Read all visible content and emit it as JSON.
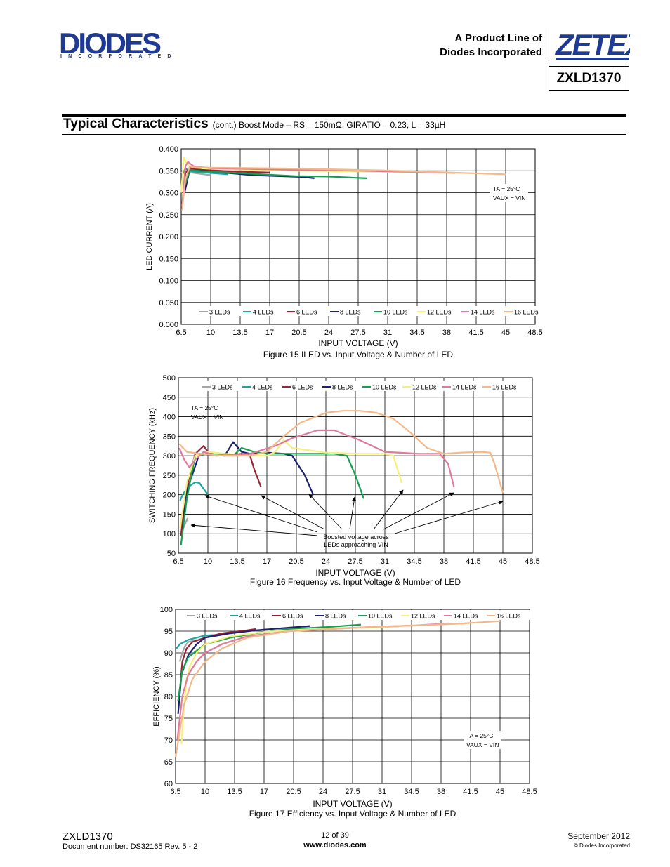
{
  "header": {
    "logo_text": "DIODES",
    "logo_subtext": "INCORPORATED",
    "product_line_1": "A Product Line of",
    "product_line_2": "Diodes Incorporated",
    "zetex_logo": "ZETEX",
    "part_number": "ZXLD1370"
  },
  "section": {
    "title": "Typical Characteristics",
    "subtitle": "(cont.) Boost Mode – RS = 150mΩ, GIRATIO = 0.23, L = 33µH"
  },
  "chart_data": [
    {
      "type": "line",
      "caption": "Figure 15  ILED vs. Input Voltage & Number of LED",
      "xlabel": "INPUT VOLTAGE (V)",
      "ylabel": "LED CURRENT (A)",
      "xlim": [
        6.5,
        48.5
      ],
      "ylim": [
        0,
        0.4
      ],
      "xticks": [
        "6.5",
        "10",
        "13.5",
        "17",
        "20.5",
        "24",
        "27.5",
        "31",
        "34.5",
        "38",
        "41.5",
        "45",
        "48.5"
      ],
      "yticks": [
        "0.000",
        "0.050",
        "0.100",
        "0.150",
        "0.200",
        "0.250",
        "0.300",
        "0.350",
        "0.400"
      ],
      "annotation_1": "TA = 25°C",
      "annotation_2": "VAUX = VIN",
      "series": [
        {
          "name": "3 LEDs",
          "color": "#a6a6a6",
          "x": [
            6.5,
            7,
            8,
            10
          ],
          "y": [
            0.345,
            0.35,
            0.345,
            0.34
          ]
        },
        {
          "name": "4 LEDs",
          "color": "#1aa5a5",
          "x": [
            6.6,
            7,
            7.5,
            8,
            10,
            12
          ],
          "y": [
            0.34,
            0.355,
            0.35,
            0.348,
            0.345,
            0.342
          ]
        },
        {
          "name": "6 LEDs",
          "color": "#9b2335",
          "x": [
            6.8,
            7,
            7.5,
            9,
            12,
            15,
            17
          ],
          "y": [
            0.31,
            0.345,
            0.356,
            0.352,
            0.349,
            0.347,
            0.346
          ]
        },
        {
          "name": "8 LEDs",
          "color": "#1f2070",
          "x": [
            6.9,
            7.5,
            9,
            12,
            15,
            18,
            21,
            22.3
          ],
          "y": [
            0.3,
            0.352,
            0.35,
            0.345,
            0.34,
            0.338,
            0.336,
            0.333
          ]
        },
        {
          "name": "10 LEDs",
          "color": "#13a050",
          "x": [
            7,
            7.5,
            9,
            12,
            15,
            20,
            24,
            28.5
          ],
          "y": [
            0.32,
            0.352,
            0.349,
            0.346,
            0.343,
            0.338,
            0.337,
            0.333
          ]
        },
        {
          "name": "12 LEDs",
          "color": "#f5f07a",
          "x": [
            6.5,
            6.8,
            7.2,
            8,
            10,
            15,
            20,
            25,
            30,
            33
          ],
          "y": [
            0.3,
            0.38,
            0.365,
            0.357,
            0.355,
            0.352,
            0.35,
            0.349,
            0.348,
            0.347
          ]
        },
        {
          "name": "14 LEDs",
          "color": "#e07a9b",
          "x": [
            6.6,
            7,
            7.3,
            8,
            10,
            15,
            20,
            25,
            30,
            35,
            39
          ],
          "y": [
            0.27,
            0.36,
            0.37,
            0.36,
            0.356,
            0.354,
            0.352,
            0.351,
            0.349,
            0.347,
            0.345
          ]
        },
        {
          "name": "16 LEDs",
          "color": "#f4b98a",
          "x": [
            6.6,
            7,
            7.5,
            8,
            10,
            15,
            20,
            25,
            30,
            35,
            40,
            45
          ],
          "y": [
            0.26,
            0.33,
            0.36,
            0.358,
            0.357,
            0.356,
            0.355,
            0.353,
            0.351,
            0.348,
            0.345,
            0.342
          ]
        }
      ]
    },
    {
      "type": "line",
      "caption": "Figure 16  Frequency vs. Input Voltage & Number of LED",
      "xlabel": "INPUT VOLTAGE (V)",
      "ylabel": "SWITCHING FREQUENCY (kHz)",
      "xlim": [
        6.5,
        48.5
      ],
      "ylim": [
        50,
        500
      ],
      "xticks": [
        "6.5",
        "10",
        "13.5",
        "17",
        "20.5",
        "24",
        "27.5",
        "31",
        "34.5",
        "38",
        "41.5",
        "45",
        "48.5"
      ],
      "yticks": [
        "50",
        "100",
        "150",
        "200",
        "250",
        "300",
        "350",
        "400",
        "450",
        "500"
      ],
      "annotation_1": "TA = 25°C",
      "annotation_2": "VAUX = VIN",
      "callout_1": "Boosted voltage across",
      "callout_2": "LEDs approaching VIN",
      "series": [
        {
          "name": "3 LEDs",
          "color": "#a6a6a6",
          "x": [
            7,
            7.3,
            7.6
          ],
          "y": [
            110,
            125,
            140
          ]
        },
        {
          "name": "4 LEDs",
          "color": "#1aa5a5",
          "x": [
            6.7,
            7,
            7.5,
            8,
            8.5,
            9,
            9.5,
            10
          ],
          "y": [
            185,
            200,
            215,
            225,
            232,
            230,
            215,
            200
          ]
        },
        {
          "name": "6 LEDs",
          "color": "#9b2335",
          "x": [
            6.8,
            7.5,
            8.5,
            9.5,
            10,
            11,
            12,
            13,
            14,
            15,
            15.5,
            16.3
          ],
          "y": [
            95,
            220,
            305,
            325,
            310,
            300,
            305,
            302,
            305,
            300,
            265,
            220
          ]
        },
        {
          "name": "8 LEDs",
          "color": "#1f2070",
          "x": [
            7,
            7.5,
            9,
            11,
            12,
            13,
            14,
            15,
            17,
            19,
            20,
            21.5,
            22.5
          ],
          "y": [
            110,
            210,
            305,
            302,
            300,
            335,
            310,
            305,
            308,
            305,
            300,
            250,
            200
          ]
        },
        {
          "name": "10 LEDs",
          "color": "#13a050",
          "x": [
            6.8,
            7.5,
            8.5,
            10,
            13,
            14,
            15.5,
            17,
            20,
            23,
            25,
            26.5,
            27.5,
            28.5
          ],
          "y": [
            70,
            190,
            300,
            305,
            300,
            320,
            310,
            305,
            305,
            305,
            305,
            300,
            250,
            190
          ]
        },
        {
          "name": "12 LEDs",
          "color": "#f5f07a",
          "x": [
            6.7,
            7.5,
            8.5,
            10,
            12,
            15,
            17,
            18,
            19,
            20,
            24,
            28,
            31,
            32,
            33
          ],
          "y": [
            115,
            230,
            300,
            310,
            305,
            300,
            300,
            310,
            340,
            320,
            308,
            305,
            305,
            300,
            230
          ]
        },
        {
          "name": "14 LEDs",
          "color": "#e07a9b",
          "x": [
            6.6,
            7.2,
            7.8,
            8.5,
            9.5,
            11,
            15,
            18,
            20,
            23,
            25,
            28,
            31,
            35,
            37.5,
            38.5,
            39.2
          ],
          "y": [
            320,
            290,
            270,
            290,
            310,
            300,
            305,
            325,
            345,
            365,
            365,
            340,
            310,
            305,
            305,
            280,
            220
          ]
        },
        {
          "name": "16 LEDs",
          "color": "#f4b98a",
          "x": [
            6.6,
            7.5,
            9,
            12,
            15,
            17,
            19,
            21,
            24,
            26,
            28,
            30,
            32,
            34,
            36,
            38,
            40,
            42.5,
            43.5,
            44,
            45
          ],
          "y": [
            330,
            310,
            305,
            300,
            300,
            310,
            350,
            385,
            410,
            415,
            415,
            410,
            395,
            360,
            320,
            305,
            308,
            310,
            308,
            280,
            205
          ]
        }
      ]
    },
    {
      "type": "line",
      "caption": "Figure 17  Efficiency vs. Input Voltage & Number of LED",
      "xlabel": "INPUT VOLTAGE (V)",
      "ylabel": "EFFICIENCY (%)",
      "xlim": [
        6.5,
        48.5
      ],
      "ylim": [
        60,
        100
      ],
      "xticks": [
        "6.5",
        "10",
        "13.5",
        "17",
        "20.5",
        "24",
        "27.5",
        "31",
        "34.5",
        "38",
        "41.5",
        "45",
        "48.5"
      ],
      "yticks": [
        "60",
        "65",
        "70",
        "75",
        "80",
        "85",
        "90",
        "95",
        "100"
      ],
      "annotation_1": "TA = 25°C",
      "annotation_2": "VAUX = VIN",
      "series": [
        {
          "name": "3 LEDs",
          "color": "#a6a6a6",
          "x": [
            7,
            7.3,
            7.6,
            8,
            9
          ],
          "y": [
            88,
            90,
            91.5,
            92.5,
            93
          ]
        },
        {
          "name": "4 LEDs",
          "color": "#1aa5a5",
          "x": [
            6.6,
            7,
            7.5,
            8,
            9,
            10,
            12
          ],
          "y": [
            91,
            92,
            92.5,
            93,
            93.5,
            94,
            94.2
          ]
        },
        {
          "name": "6 LEDs",
          "color": "#9b2335",
          "x": [
            7,
            7.3,
            7.8,
            8.5,
            10,
            12,
            15,
            16
          ],
          "y": [
            81,
            88,
            91,
            92.5,
            93.5,
            94.5,
            95.2,
            95.5
          ]
        },
        {
          "name": "8 LEDs",
          "color": "#1f2070",
          "x": [
            6.8,
            7.2,
            8,
            9,
            10,
            13,
            16,
            20,
            22.5
          ],
          "y": [
            76,
            85,
            89.5,
            92,
            93.5,
            94.5,
            95.2,
            95.8,
            96.2
          ]
        },
        {
          "name": "10 LEDs",
          "color": "#13a050",
          "x": [
            6.8,
            7.3,
            8,
            9,
            10,
            13,
            16,
            20,
            25,
            28.5
          ],
          "y": [
            79,
            86,
            89,
            90.5,
            92,
            93.5,
            94.5,
            95.5,
            96,
            96.5
          ]
        },
        {
          "name": "12 LEDs",
          "color": "#f5f07a",
          "x": [
            7.2,
            7.5,
            7.8,
            8.2,
            9,
            10,
            13,
            17,
            22,
            28,
            33
          ],
          "y": [
            69,
            78,
            84,
            87,
            90,
            92,
            93.8,
            94.8,
            95.4,
            95.8,
            96
          ]
        },
        {
          "name": "14 LEDs",
          "color": "#e07a9b",
          "x": [
            6.7,
            7.3,
            8,
            9,
            10,
            12,
            15,
            20,
            25,
            30,
            35,
            39
          ],
          "y": [
            70,
            80,
            85,
            88,
            90,
            92,
            93.8,
            95,
            95.5,
            96,
            96.3,
            96.8
          ]
        },
        {
          "name": "16 LEDs",
          "color": "#f4b98a",
          "x": [
            6.5,
            7,
            7.5,
            8.5,
            10,
            12,
            15,
            20,
            25,
            30,
            35,
            40,
            45
          ],
          "y": [
            66,
            72,
            78,
            84,
            88,
            91,
            93.5,
            95,
            95.5,
            96,
            96.3,
            96.7,
            97.3
          ]
        }
      ]
    }
  ],
  "footer": {
    "part": "ZXLD1370",
    "doc_number": "Document number: DS32165 Rev. 5 - 2",
    "page": "12 of 39",
    "website": "www.diodes.com",
    "date": "September 2012",
    "copyright": "© Diodes Incorporated"
  }
}
